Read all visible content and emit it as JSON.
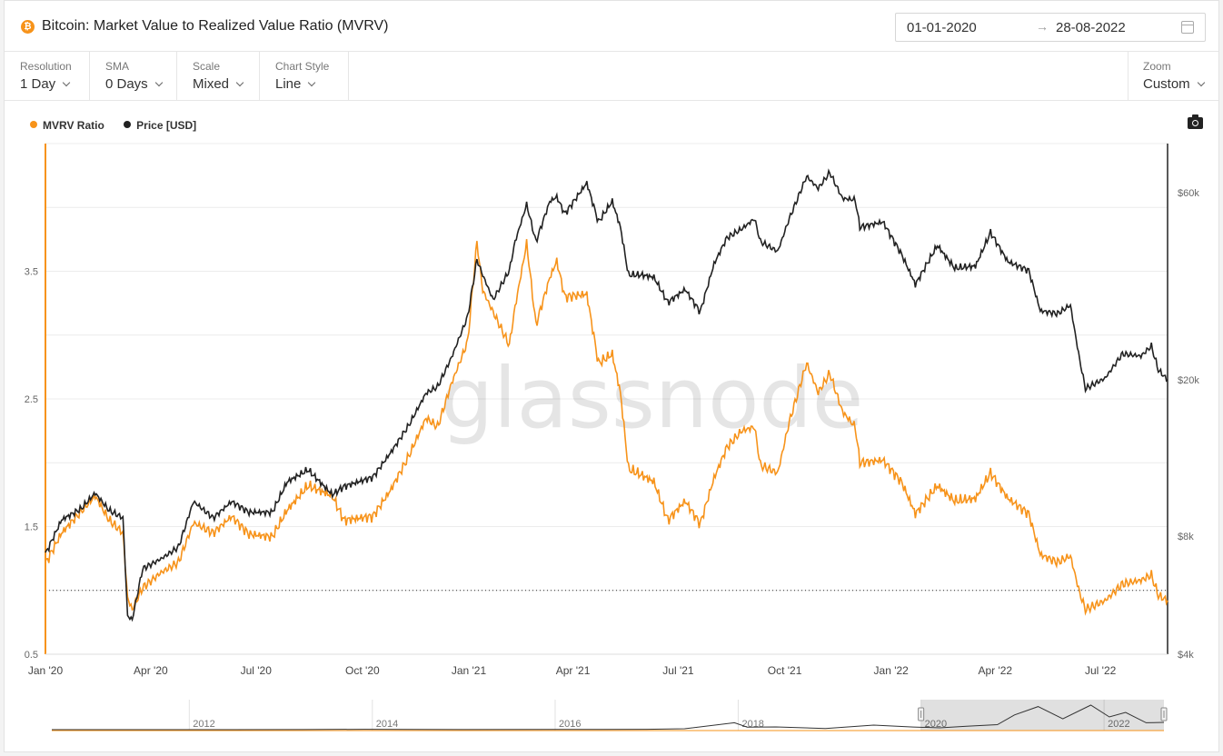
{
  "header": {
    "coin_symbol": "₿",
    "title": "Bitcoin: Market Value to Realized Value Ratio (MVRV)",
    "date_from": "01-01-2020",
    "date_arrow": "→",
    "date_to": "28-08-2022"
  },
  "controls": [
    {
      "label": "Resolution",
      "value": "1 Day"
    },
    {
      "label": "SMA",
      "value": "0 Days"
    },
    {
      "label": "Scale",
      "value": "Mixed"
    },
    {
      "label": "Chart Style",
      "value": "Line"
    }
  ],
  "zoom": {
    "label": "Zoom",
    "value": "Custom"
  },
  "watermark": "glassnode",
  "colors": {
    "mvrv": "#f7931a",
    "price": "#222222",
    "accent": "#f7931a"
  },
  "chart_data": {
    "type": "line",
    "x_range": [
      "2020-01-01",
      "2022-08-28"
    ],
    "x_ticks": [
      "Jan '20",
      "Apr '20",
      "Jul '20",
      "Oct '20",
      "Jan '21",
      "Apr '21",
      "Jul '21",
      "Oct '21",
      "Jan '22",
      "Apr '22",
      "Jul '22"
    ],
    "y_left": {
      "ticks": [
        "0.5",
        "1.5",
        "2.5",
        "3.5"
      ],
      "ylim": [
        0.5,
        4.5
      ]
    },
    "y_right": {
      "scale": "log",
      "ticks": [
        "$4k",
        "$8k",
        "$20k",
        "$60k"
      ],
      "tick_values": [
        4000,
        8000,
        20000,
        60000
      ],
      "ylim": [
        4000,
        80000
      ]
    },
    "reference_line": {
      "axis": "left",
      "value": 1.0,
      "style": "dotted"
    },
    "legend": [
      "MVRV Ratio",
      "Price [USD]"
    ],
    "legend_position": "top-left",
    "series": [
      {
        "name": "MVRV Ratio",
        "axis": "left",
        "points": [
          [
            "2020-01-01",
            1.21
          ],
          [
            "2020-01-15",
            1.45
          ],
          [
            "2020-02-01",
            1.62
          ],
          [
            "2020-02-13",
            1.74
          ],
          [
            "2020-02-25",
            1.55
          ],
          [
            "2020-03-08",
            1.45
          ],
          [
            "2020-03-12",
            0.94
          ],
          [
            "2020-03-16",
            0.85
          ],
          [
            "2020-03-25",
            1.02
          ],
          [
            "2020-04-10",
            1.14
          ],
          [
            "2020-04-25",
            1.22
          ],
          [
            "2020-05-08",
            1.53
          ],
          [
            "2020-05-25",
            1.45
          ],
          [
            "2020-06-10",
            1.58
          ],
          [
            "2020-06-25",
            1.44
          ],
          [
            "2020-07-15",
            1.42
          ],
          [
            "2020-07-28",
            1.63
          ],
          [
            "2020-08-15",
            1.82
          ],
          [
            "2020-09-05",
            1.74
          ],
          [
            "2020-09-15",
            1.55
          ],
          [
            "2020-10-10",
            1.58
          ],
          [
            "2020-10-25",
            1.78
          ],
          [
            "2020-11-10",
            2.05
          ],
          [
            "2020-11-25",
            2.35
          ],
          [
            "2020-12-05",
            2.28
          ],
          [
            "2020-12-17",
            2.62
          ],
          [
            "2020-12-31",
            2.95
          ],
          [
            "2021-01-08",
            3.73
          ],
          [
            "2021-01-13",
            3.35
          ],
          [
            "2021-01-22",
            3.18
          ],
          [
            "2021-02-05",
            2.92
          ],
          [
            "2021-02-10",
            3.22
          ],
          [
            "2021-02-20",
            3.72
          ],
          [
            "2021-02-28",
            3.08
          ],
          [
            "2021-03-12",
            3.45
          ],
          [
            "2021-03-18",
            3.58
          ],
          [
            "2021-03-25",
            3.3
          ],
          [
            "2021-04-13",
            3.32
          ],
          [
            "2021-04-23",
            2.78
          ],
          [
            "2021-05-05",
            2.85
          ],
          [
            "2021-05-12",
            2.55
          ],
          [
            "2021-05-19",
            1.95
          ],
          [
            "2021-05-31",
            1.9
          ],
          [
            "2021-06-10",
            1.85
          ],
          [
            "2021-06-22",
            1.55
          ],
          [
            "2021-07-07",
            1.7
          ],
          [
            "2021-07-20",
            1.52
          ],
          [
            "2021-08-01",
            1.88
          ],
          [
            "2021-08-12",
            2.12
          ],
          [
            "2021-08-25",
            2.25
          ],
          [
            "2021-09-05",
            2.28
          ],
          [
            "2021-09-10",
            1.98
          ],
          [
            "2021-09-25",
            1.92
          ],
          [
            "2021-10-05",
            2.32
          ],
          [
            "2021-10-20",
            2.78
          ],
          [
            "2021-10-30",
            2.55
          ],
          [
            "2021-11-09",
            2.7
          ],
          [
            "2021-11-20",
            2.4
          ],
          [
            "2021-12-01",
            2.28
          ],
          [
            "2021-12-05",
            2.0
          ],
          [
            "2021-12-25",
            2.02
          ],
          [
            "2022-01-10",
            1.85
          ],
          [
            "2022-01-22",
            1.6
          ],
          [
            "2022-02-10",
            1.82
          ],
          [
            "2022-02-25",
            1.7
          ],
          [
            "2022-03-15",
            1.72
          ],
          [
            "2022-03-28",
            1.92
          ],
          [
            "2022-04-12",
            1.72
          ],
          [
            "2022-04-30",
            1.6
          ],
          [
            "2022-05-10",
            1.28
          ],
          [
            "2022-05-25",
            1.22
          ],
          [
            "2022-06-05",
            1.27
          ],
          [
            "2022-06-13",
            0.98
          ],
          [
            "2022-06-18",
            0.85
          ],
          [
            "2022-07-05",
            0.92
          ],
          [
            "2022-07-20",
            1.05
          ],
          [
            "2022-08-05",
            1.08
          ],
          [
            "2022-08-14",
            1.12
          ],
          [
            "2022-08-20",
            0.96
          ],
          [
            "2022-08-28",
            0.92
          ]
        ]
      },
      {
        "name": "Price [USD]",
        "axis": "right",
        "points": [
          [
            "2020-01-01",
            7200
          ],
          [
            "2020-01-15",
            8800
          ],
          [
            "2020-02-01",
            9400
          ],
          [
            "2020-02-13",
            10300
          ],
          [
            "2020-02-25",
            9300
          ],
          [
            "2020-03-08",
            8900
          ],
          [
            "2020-03-12",
            5000
          ],
          [
            "2020-03-16",
            4900
          ],
          [
            "2020-03-25",
            6600
          ],
          [
            "2020-04-10",
            7000
          ],
          [
            "2020-04-25",
            7500
          ],
          [
            "2020-05-08",
            9800
          ],
          [
            "2020-05-25",
            8900
          ],
          [
            "2020-06-10",
            9800
          ],
          [
            "2020-06-25",
            9200
          ],
          [
            "2020-07-15",
            9200
          ],
          [
            "2020-07-28",
            11000
          ],
          [
            "2020-08-15",
            11800
          ],
          [
            "2020-09-05",
            10200
          ],
          [
            "2020-09-15",
            10700
          ],
          [
            "2020-10-10",
            11300
          ],
          [
            "2020-10-25",
            13000
          ],
          [
            "2020-11-10",
            15300
          ],
          [
            "2020-11-25",
            18500
          ],
          [
            "2020-12-05",
            19200
          ],
          [
            "2020-12-17",
            22800
          ],
          [
            "2020-12-31",
            29000
          ],
          [
            "2021-01-08",
            40500
          ],
          [
            "2021-01-13",
            37000
          ],
          [
            "2021-01-22",
            32000
          ],
          [
            "2021-02-05",
            38000
          ],
          [
            "2021-02-10",
            45000
          ],
          [
            "2021-02-20",
            56000
          ],
          [
            "2021-02-28",
            45000
          ],
          [
            "2021-03-12",
            57000
          ],
          [
            "2021-03-18",
            58500
          ],
          [
            "2021-03-25",
            53000
          ],
          [
            "2021-04-13",
            63500
          ],
          [
            "2021-04-23",
            50500
          ],
          [
            "2021-05-05",
            57000
          ],
          [
            "2021-05-12",
            49000
          ],
          [
            "2021-05-19",
            37000
          ],
          [
            "2021-05-31",
            37000
          ],
          [
            "2021-06-10",
            36500
          ],
          [
            "2021-06-22",
            31500
          ],
          [
            "2021-07-07",
            34000
          ],
          [
            "2021-07-20",
            29800
          ],
          [
            "2021-08-01",
            39500
          ],
          [
            "2021-08-12",
            46000
          ],
          [
            "2021-08-25",
            48500
          ],
          [
            "2021-09-05",
            51500
          ],
          [
            "2021-09-10",
            45000
          ],
          [
            "2021-09-25",
            42500
          ],
          [
            "2021-10-05",
            51500
          ],
          [
            "2021-10-20",
            66000
          ],
          [
            "2021-10-30",
            61500
          ],
          [
            "2021-11-09",
            67500
          ],
          [
            "2021-11-20",
            58000
          ],
          [
            "2021-12-01",
            57500
          ],
          [
            "2021-12-05",
            49000
          ],
          [
            "2021-12-25",
            50500
          ],
          [
            "2022-01-10",
            41800
          ],
          [
            "2022-01-22",
            35000
          ],
          [
            "2022-02-10",
            44000
          ],
          [
            "2022-02-25",
            38500
          ],
          [
            "2022-03-15",
            39000
          ],
          [
            "2022-03-28",
            47500
          ],
          [
            "2022-04-12",
            40000
          ],
          [
            "2022-04-30",
            38000
          ],
          [
            "2022-05-10",
            30000
          ],
          [
            "2022-05-25",
            29500
          ],
          [
            "2022-06-05",
            31000
          ],
          [
            "2022-06-13",
            22500
          ],
          [
            "2022-06-18",
            19000
          ],
          [
            "2022-07-05",
            20200
          ],
          [
            "2022-07-20",
            23300
          ],
          [
            "2022-08-05",
            23000
          ],
          [
            "2022-08-14",
            24400
          ],
          [
            "2022-08-20",
            21200
          ],
          [
            "2022-08-28",
            20000
          ]
        ]
      }
    ],
    "navigator": {
      "ticks": [
        "2012",
        "2014",
        "2016",
        "2018",
        "2020",
        "2022"
      ],
      "selection": [
        "2020-01-01",
        "2022-08-28"
      ],
      "points": [
        [
          "2010-07-01",
          0.1
        ],
        [
          "2011-06-01",
          20
        ],
        [
          "2012-01-01",
          6
        ],
        [
          "2013-04-01",
          150
        ],
        [
          "2013-12-01",
          1000
        ],
        [
          "2014-06-01",
          600
        ],
        [
          "2015-01-01",
          250
        ],
        [
          "2016-01-01",
          430
        ],
        [
          "2016-07-01",
          650
        ],
        [
          "2017-01-01",
          1000
        ],
        [
          "2017-06-01",
          2500
        ],
        [
          "2017-12-17",
          19000
        ],
        [
          "2018-02-06",
          7000
        ],
        [
          "2018-06-01",
          7500
        ],
        [
          "2018-12-15",
          3300
        ],
        [
          "2019-06-26",
          12500
        ],
        [
          "2019-12-01",
          7300
        ],
        [
          "2020-03-16",
          4900
        ],
        [
          "2020-07-01",
          9200
        ],
        [
          "2020-11-01",
          13800
        ],
        [
          "2021-01-08",
          40500
        ],
        [
          "2021-04-13",
          63500
        ],
        [
          "2021-07-20",
          29800
        ],
        [
          "2021-11-09",
          67500
        ],
        [
          "2022-01-22",
          35000
        ],
        [
          "2022-03-28",
          47500
        ],
        [
          "2022-06-18",
          19000
        ],
        [
          "2022-08-28",
          20000
        ]
      ]
    }
  }
}
